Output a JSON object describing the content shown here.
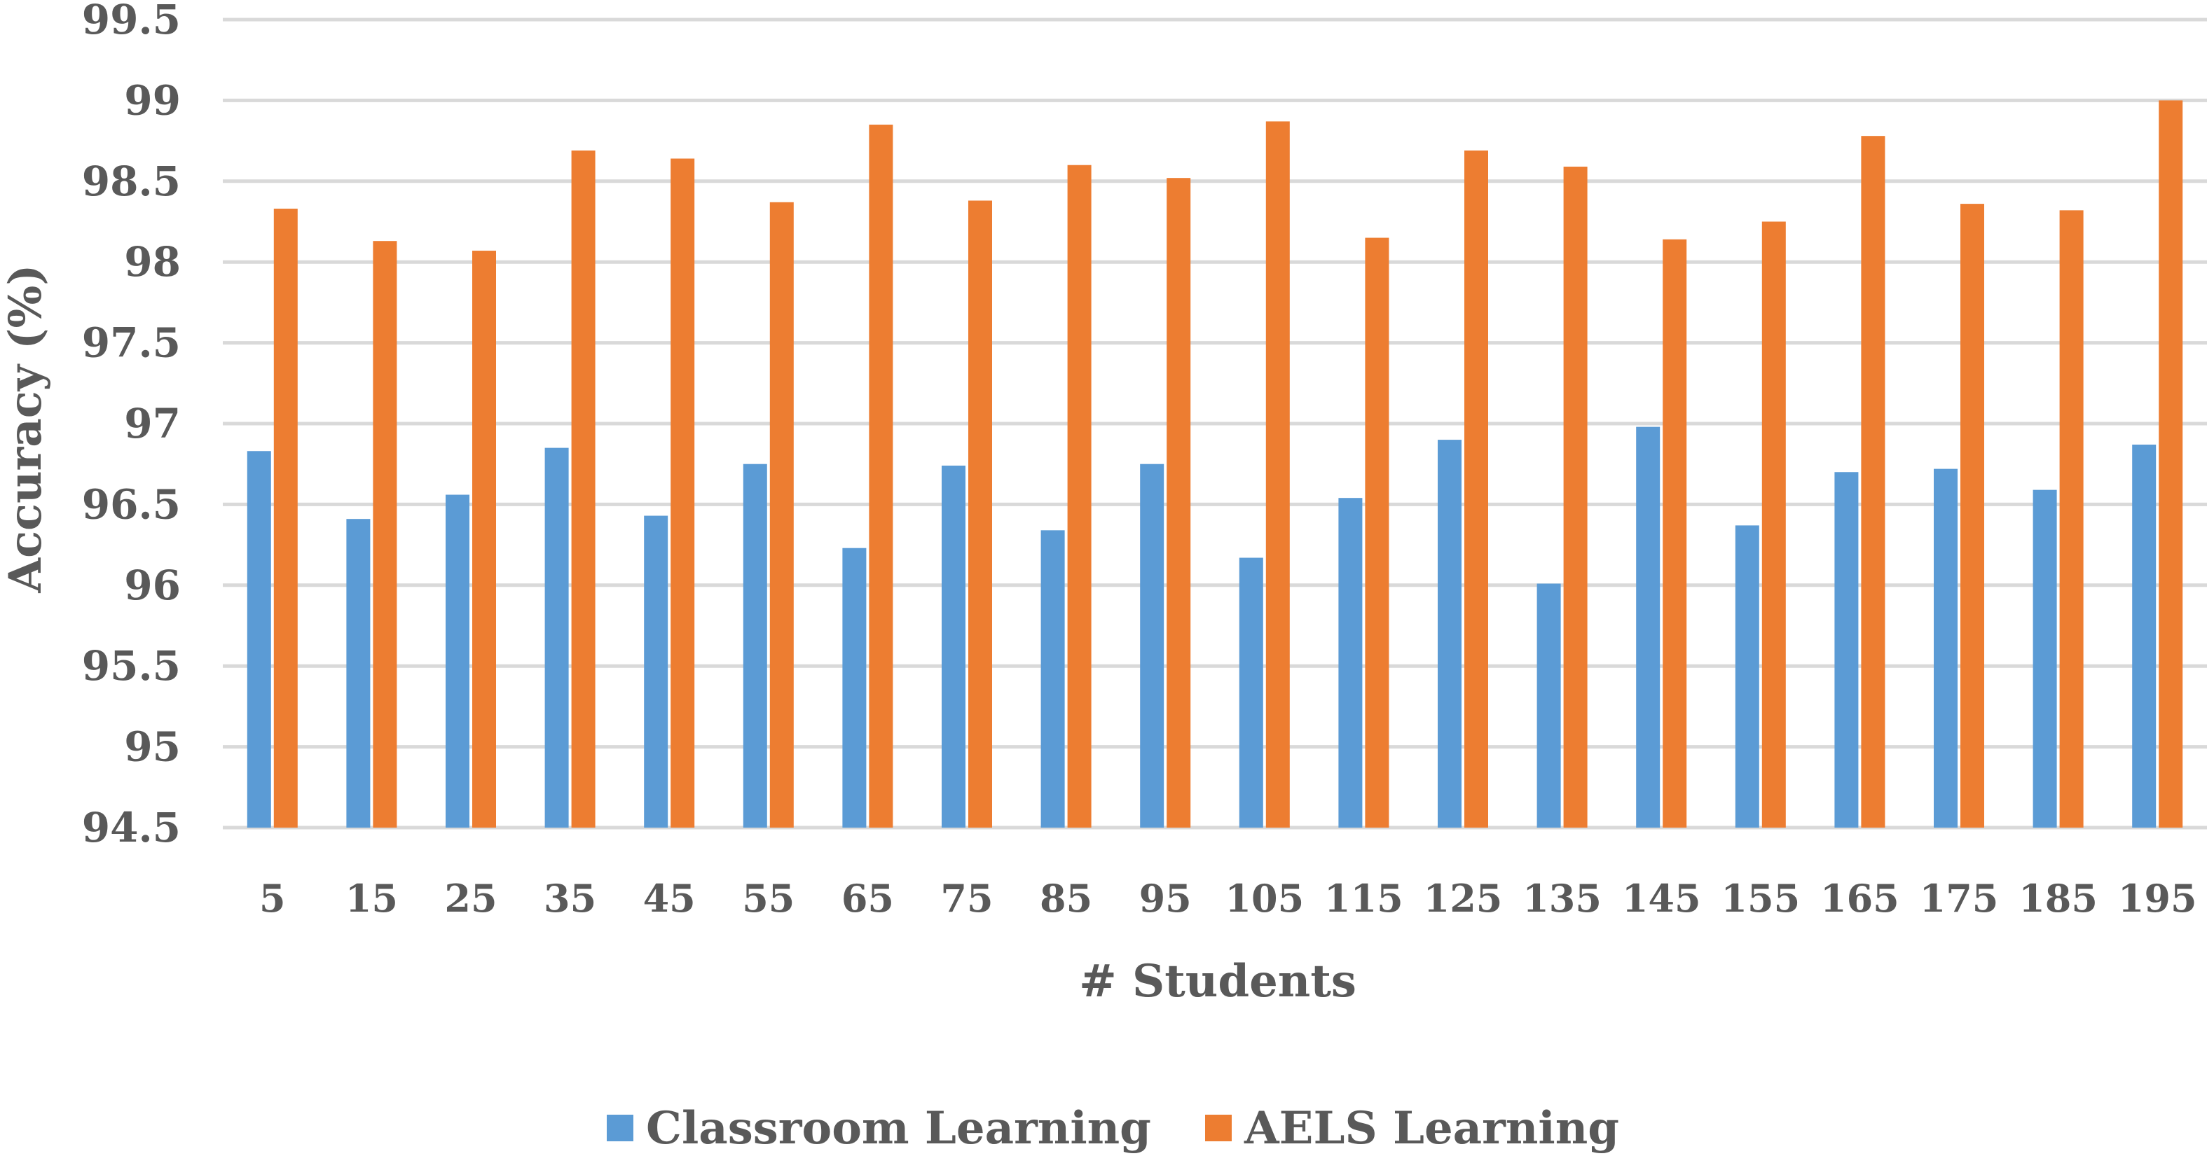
{
  "chart_data": {
    "type": "bar",
    "title": "",
    "xlabel": "# Students",
    "ylabel": "Accuracy (%)",
    "ylim": [
      94.5,
      99.5
    ],
    "yticks": [
      "94.5",
      "95",
      "95.5",
      "96",
      "96.5",
      "97",
      "97.5",
      "98",
      "98.5",
      "99",
      "99.5"
    ],
    "grid": true,
    "legend_position": "bottom",
    "categories": [
      "5",
      "15",
      "25",
      "35",
      "45",
      "55",
      "65",
      "75",
      "85",
      "95",
      "105",
      "115",
      "125",
      "135",
      "145",
      "155",
      "165",
      "175",
      "185",
      "195"
    ],
    "series": [
      {
        "name": "Classroom Learning",
        "color": "#5B9BD5",
        "values": [
          96.83,
          96.41,
          96.56,
          96.85,
          96.43,
          96.75,
          96.23,
          96.74,
          96.34,
          96.75,
          96.17,
          96.54,
          96.9,
          96.01,
          96.98,
          96.37,
          96.7,
          96.72,
          96.59,
          96.87
        ]
      },
      {
        "name": "AELS Learning",
        "color": "#ED7D31",
        "values": [
          98.33,
          98.13,
          98.07,
          98.69,
          98.64,
          98.37,
          98.85,
          98.38,
          98.6,
          98.52,
          98.87,
          98.15,
          98.69,
          98.59,
          98.14,
          98.25,
          98.78,
          98.36,
          98.32,
          99.0
        ]
      }
    ]
  }
}
